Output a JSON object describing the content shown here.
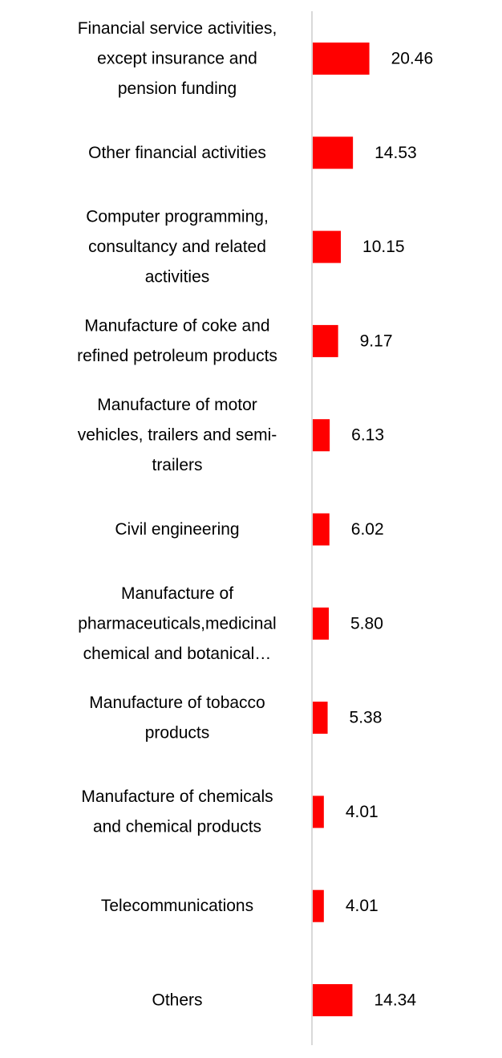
{
  "chart_data": {
    "type": "bar",
    "orientation": "horizontal",
    "title": "",
    "xlabel": "",
    "ylabel": "",
    "xlim": [
      0,
      100
    ],
    "grid": false,
    "bar_color": "#FF0000",
    "axis_color": "#D9D9D9",
    "categories": [
      [
        "Financial service activities,",
        "except insurance and",
        "pension funding"
      ],
      [
        "Other financial activities"
      ],
      [
        "Computer programming,",
        "consultancy and related",
        "activities"
      ],
      [
        "Manufacture of coke and",
        "refined petroleum products"
      ],
      [
        "Manufacture of motor",
        "vehicles, trailers and semi-",
        "trailers"
      ],
      [
        "Civil engineering"
      ],
      [
        "Manufacture of",
        "pharmaceuticals,medicinal",
        "chemical and botanical…"
      ],
      [
        "Manufacture of tobacco",
        "products"
      ],
      [
        "Manufacture of chemicals",
        "and chemical products"
      ],
      [
        "Telecommunications"
      ],
      [
        "Others"
      ]
    ],
    "values": [
      20.46,
      14.53,
      10.15,
      9.17,
      6.13,
      6.02,
      5.8,
      5.38,
      4.01,
      4.01,
      14.34
    ],
    "value_labels": [
      "20.46",
      "14.53",
      "10.15",
      "9.17",
      "6.13",
      "6.02",
      "5.80",
      "5.38",
      "4.01",
      "4.01",
      "14.34"
    ]
  }
}
